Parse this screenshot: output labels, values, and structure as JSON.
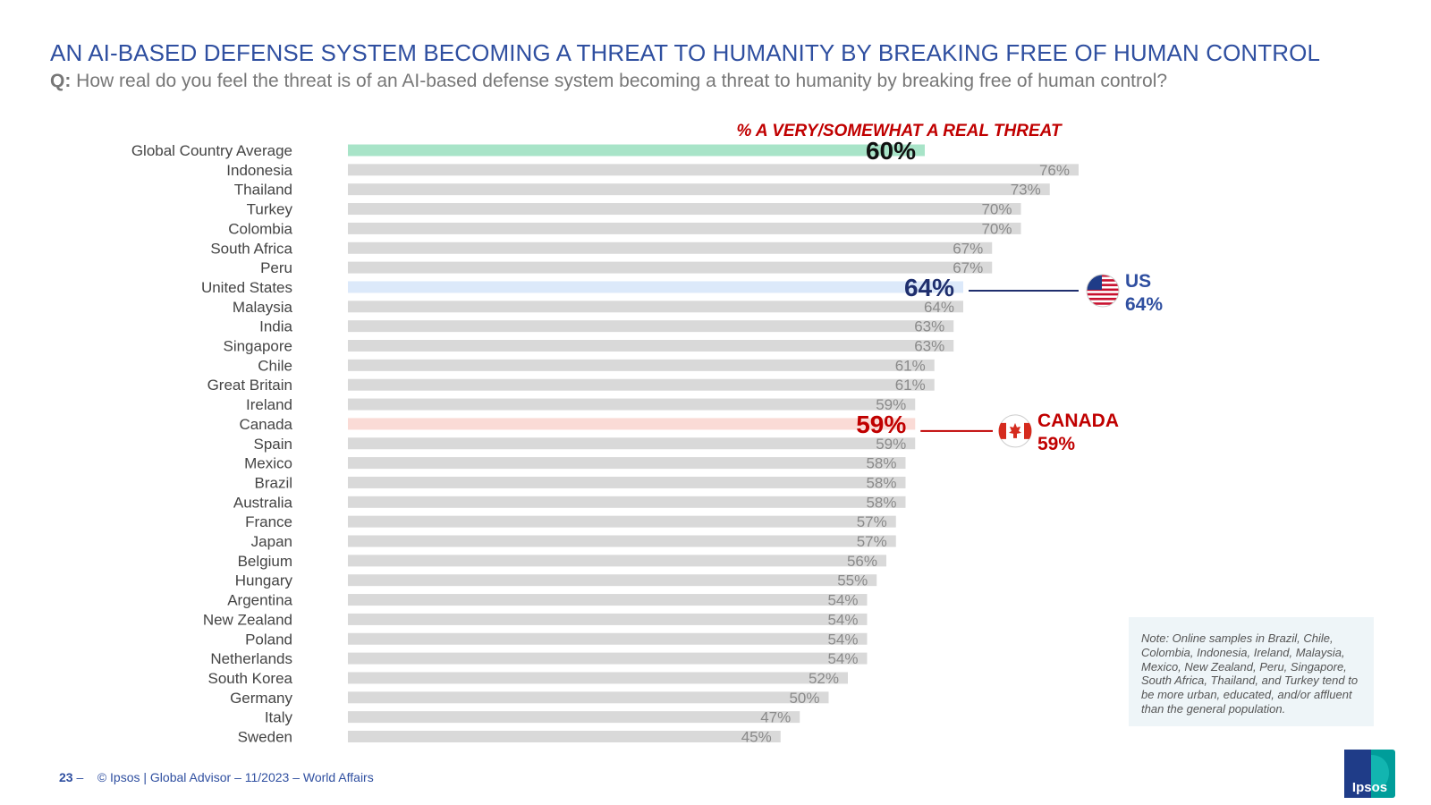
{
  "header": {
    "title": "AN AI-BASED DEFENSE SYSTEM BECOMING A THREAT TO HUMANITY BY BREAKING FREE OF HUMAN CONTROL",
    "question_prefix": "Q:",
    "question_text": "How real do you feel the threat is of an AI-based defense system becoming a threat to humanity by breaking free of human control?"
  },
  "chart_data": {
    "type": "bar",
    "orientation": "horizontal",
    "title": "% A VERY/SOMEWHAT A REAL THREAT",
    "categories": [
      "Global Country Average",
      "Indonesia",
      "Thailand",
      "Turkey",
      "Colombia",
      "South Africa",
      "Peru",
      "United States",
      "Malaysia",
      "India",
      "Singapore",
      "Chile",
      "Great Britain",
      "Ireland",
      "Canada",
      "Spain",
      "Mexico",
      "Brazil",
      "Australia",
      "France",
      "Japan",
      "Belgium",
      "Hungary",
      "Argentina",
      "New Zealand",
      "Poland",
      "Netherlands",
      "South Korea",
      "Germany",
      "Italy",
      "Sweden"
    ],
    "values": [
      60,
      76,
      73,
      70,
      70,
      67,
      67,
      64,
      64,
      63,
      63,
      61,
      61,
      59,
      59,
      59,
      58,
      58,
      58,
      57,
      57,
      56,
      55,
      54,
      54,
      54,
      54,
      52,
      50,
      47,
      45
    ],
    "value_labels": [
      "60%",
      "76%",
      "73%",
      "70%",
      "70%",
      "67%",
      "67%",
      "64%",
      "64%",
      "63%",
      "63%",
      "61%",
      "61%",
      "59%",
      "59%",
      "59%",
      "58%",
      "58%",
      "58%",
      "57%",
      "57%",
      "56%",
      "55%",
      "54%",
      "54%",
      "54%",
      "54%",
      "52%",
      "50%",
      "47%",
      "45%"
    ],
    "highlights": {
      "Global Country Average": "global",
      "United States": "us",
      "Canada": "canada"
    },
    "colors": {
      "default_bar": "#d9d9d9",
      "global_bar": "#a8e4c8",
      "us_bar": "#dce9fa",
      "canada_bar": "#fadbd6",
      "default_label": "#8a8a8a",
      "global_label": "#111111",
      "us_label": "#1f2f6e",
      "canada_label": "#c00000",
      "title": "#c00000"
    },
    "callouts": [
      {
        "name": "US",
        "value": "64%",
        "category": "United States",
        "color": "#2f4fa0"
      },
      {
        "name": "CANADA",
        "value": "59%",
        "category": "Canada",
        "color": "#c00000"
      }
    ]
  },
  "note": "Note: Online samples in Brazil, Chile, Colombia, Indonesia, Ireland, Malaysia, Mexico, New Zealand, Peru, Singapore, South Africa, Thailand, and Turkey tend to be more urban, educated, and/or affluent than the general population.",
  "footer": {
    "page_number": "23",
    "dash": "–",
    "text": "© Ipsos | Global Advisor – 11/2023 – World Affairs"
  },
  "logo": {
    "text": "Ipsos",
    "color": "#009d9a"
  }
}
